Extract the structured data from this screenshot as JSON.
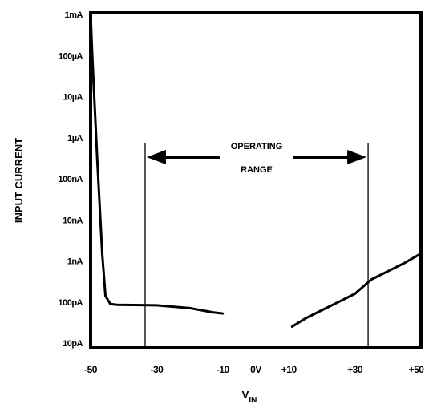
{
  "chart_data": {
    "type": "line",
    "xlabel": "V",
    "xlabel_sub": "IN",
    "ylabel": "INPUT CURRENT",
    "xlim": [
      -50,
      50
    ],
    "ylog_decades": [
      -11,
      -3
    ],
    "x_ticks": [
      {
        "v": -50,
        "label": "-50"
      },
      {
        "v": -30,
        "label": "-30"
      },
      {
        "v": -10,
        "label": "-10"
      },
      {
        "v": 0,
        "label": "0V"
      },
      {
        "v": 10,
        "label": "+10"
      },
      {
        "v": 30,
        "label": "+30"
      },
      {
        "v": 50,
        "label": "+50"
      }
    ],
    "y_ticks": [
      {
        "exp": -3,
        "label": "1mA"
      },
      {
        "exp": -4,
        "label": "100µA"
      },
      {
        "exp": -5,
        "label": "10µA"
      },
      {
        "exp": -6,
        "label": "1µA"
      },
      {
        "exp": -7,
        "label": "100nA"
      },
      {
        "exp": -8,
        "label": "10nA"
      },
      {
        "exp": -9,
        "label": "1nA"
      },
      {
        "exp": -10,
        "label": "100pA"
      },
      {
        "exp": -11,
        "label": "10pA"
      }
    ],
    "series": [
      {
        "points": [
          [
            -50,
            -3
          ],
          [
            -49.5,
            -4
          ],
          [
            -48,
            -6.5
          ],
          [
            -46.5,
            -8.8
          ],
          [
            -45.5,
            -9.85
          ],
          [
            -44,
            -10.05
          ],
          [
            -42,
            -10.07
          ],
          [
            -30,
            -10.08
          ],
          [
            -20,
            -10.15
          ],
          [
            -13,
            -10.25
          ],
          [
            -10,
            -10.28
          ]
        ]
      },
      {
        "points": [
          [
            11,
            -10.6
          ],
          [
            15,
            -10.4
          ],
          [
            20,
            -10.2
          ],
          [
            25,
            -10.0
          ],
          [
            30,
            -9.8
          ],
          [
            35,
            -9.45
          ],
          [
            40,
            -9.25
          ],
          [
            45,
            -9.05
          ],
          [
            50,
            -8.82
          ]
        ]
      }
    ],
    "operating_range": {
      "x": [
        -33.5,
        34
      ],
      "label_line1": "OPERATING",
      "label_line2": "RANGE"
    },
    "grid": false
  }
}
